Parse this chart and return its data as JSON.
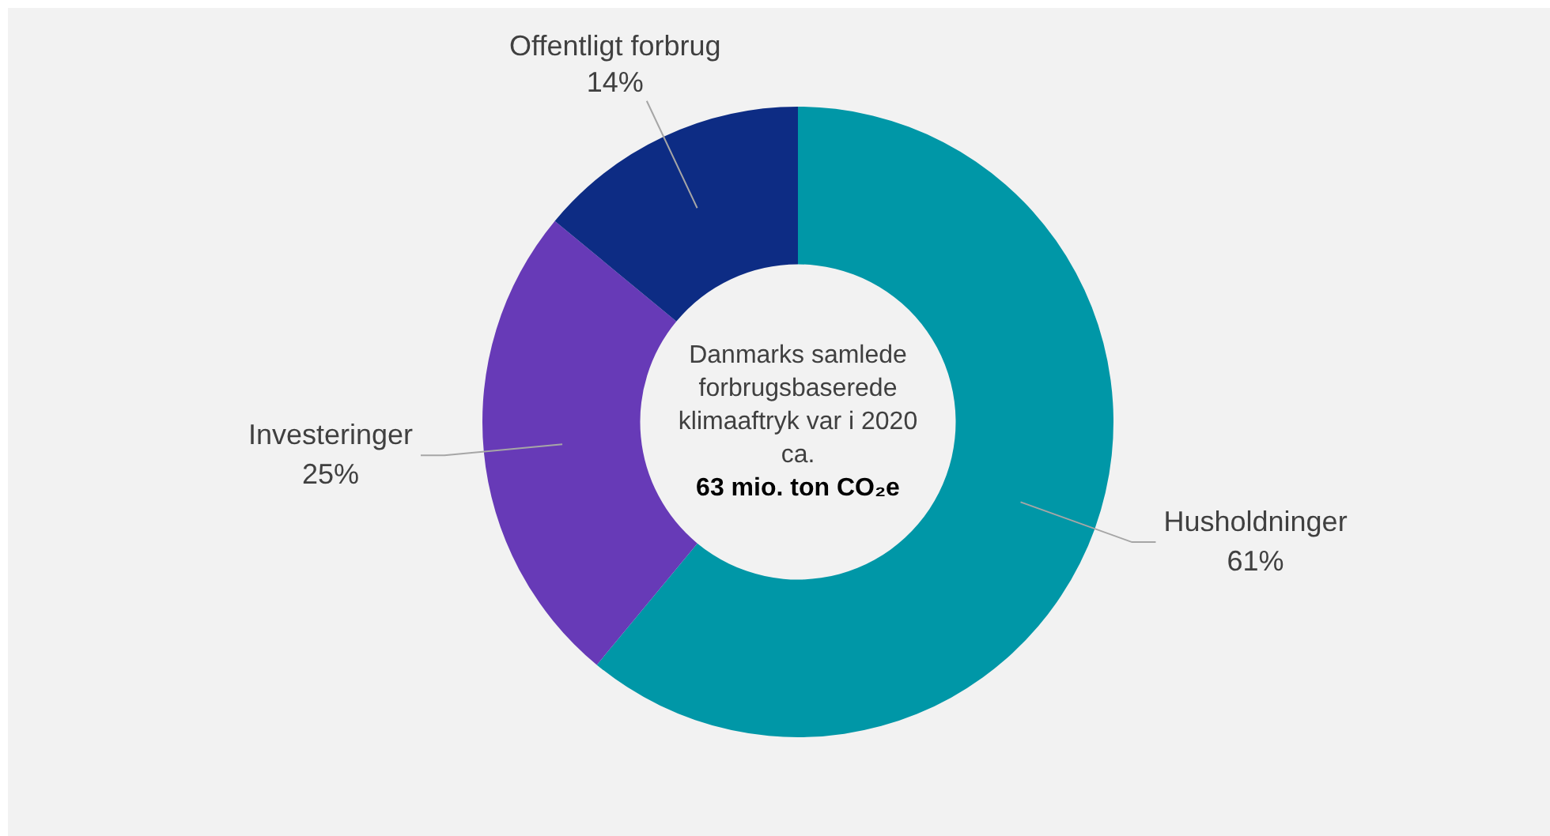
{
  "chart_data": {
    "type": "donut",
    "categories": [
      "Husholdninger",
      "Investeringer",
      "Offentligt forbrug"
    ],
    "values": [
      61,
      25,
      14
    ],
    "colors": [
      "#0097a7",
      "#673ab7",
      "#0d2c84"
    ],
    "value_labels": [
      "61%",
      "25%",
      "14%"
    ],
    "legend": false,
    "annotations": [
      "Danmarks samlede forbrugsbaserede klimaaftryk var i 2020 ca.",
      "63 mio. ton CO₂e"
    ]
  }
}
